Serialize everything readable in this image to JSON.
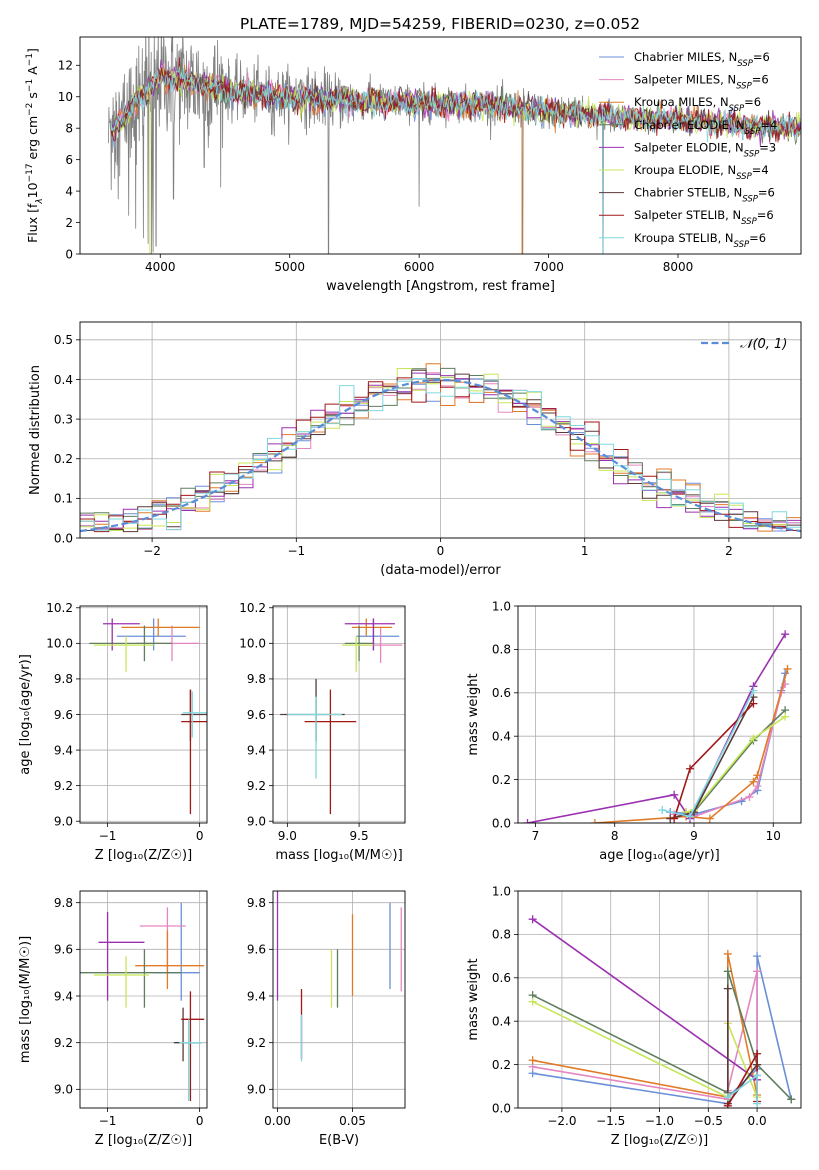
{
  "figure_title": "PLATE=1789, MJD=54259, FIBERID=0230, z=0.052",
  "series": [
    {
      "name": "Chabrier MILES",
      "sup": "SSP",
      "n": "6",
      "color": "#6a8fd8"
    },
    {
      "name": "Salpeter MILES",
      "sup": "SSP",
      "n": "6",
      "color": "#e586c0"
    },
    {
      "name": "Kroupa MILES",
      "sup": "SSP",
      "n": "6",
      "color": "#e07b28"
    },
    {
      "name": "Chabrier ELODIE",
      "sup": "SSP",
      "n": "4",
      "color": "#5f7d5f"
    },
    {
      "name": "Salpeter ELODIE",
      "sup": "SSP",
      "n": "3",
      "color": "#9b30b0"
    },
    {
      "name": "Kroupa ELODIE",
      "sup": "SSP",
      "n": "4",
      "color": "#c8e65a"
    },
    {
      "name": "Chabrier STELIB",
      "sup": "SSP",
      "n": "6",
      "color": "#5a3a3a"
    },
    {
      "name": "Salpeter STELIB",
      "sup": "SSP",
      "n": "6",
      "color": "#a01818"
    },
    {
      "name": "Kroupa STELIB",
      "sup": "SSP",
      "n": "6",
      "color": "#7fd8e0"
    }
  ],
  "chart_data": [
    {
      "id": "spectrum",
      "type": "line",
      "xlabel": "wavelength [Angstrom, rest frame]",
      "ylabel_parts": [
        "Flux [f",
        "λ",
        "10",
        "−17",
        " erg cm",
        "−2",
        " s",
        "−1",
        " A",
        "−1",
        "]"
      ],
      "xlim": [
        3380,
        8950
      ],
      "ylim": [
        0,
        13.8
      ],
      "xticks": [
        4000,
        5000,
        6000,
        7000,
        8000
      ],
      "yticks": [
        0,
        2,
        4,
        6,
        8,
        10,
        12
      ],
      "continuum_x": [
        3600,
        3700,
        3800,
        3900,
        4000,
        4200,
        4400,
        4600,
        5000,
        5500,
        6000,
        6500,
        7000,
        7400,
        7800,
        8200,
        8600,
        8950
      ],
      "continuum_y": [
        7.6,
        8.4,
        9.6,
        10.4,
        11.3,
        11.0,
        10.6,
        10.3,
        10.0,
        9.7,
        9.6,
        9.5,
        9.1,
        8.8,
        8.6,
        8.4,
        8.1,
        8.0
      ],
      "data_color": "#808080",
      "absorption_features": [
        [
          3933,
          0
        ],
        [
          3968,
          0.5
        ],
        [
          4102,
          3.5
        ],
        [
          4340,
          5.5
        ],
        [
          4861,
          7.6
        ],
        [
          5300,
          0
        ],
        [
          6000,
          3.0
        ],
        [
          6800,
          0
        ],
        [
          7420,
          0
        ]
      ]
    },
    {
      "id": "residuals",
      "type": "histogram",
      "xlabel": "(data-model)/error",
      "ylabel": "Normed distribution",
      "xlim": [
        -2.5,
        2.5
      ],
      "ylim": [
        0,
        0.545
      ],
      "xticks": [
        -2,
        -1,
        0,
        1,
        2
      ],
      "yticks": [
        0.0,
        0.1,
        0.2,
        0.3,
        0.4,
        0.5
      ],
      "bin_width": 0.1,
      "legend": "𝒩(0, 1)",
      "legend_color": "#5a8dd8"
    },
    {
      "id": "age_vs_Z",
      "type": "errorbar",
      "xlabel": "Z [log₁₀(Z/Z☉)]",
      "ylabel": "age  [log₁₀(age/yr)]",
      "xlim": [
        -1.3,
        0.08
      ],
      "ylim": [
        8.99,
        10.21
      ],
      "xticks": [
        -1,
        0
      ],
      "yticks": [
        9.0,
        9.2,
        9.4,
        9.6,
        9.8,
        10.0,
        10.2
      ],
      "points": [
        {
          "x": -0.5,
          "y": 10.04,
          "xerr": [
            0.4,
            0.35
          ],
          "yerr": [
            0.08,
            0.1
          ],
          "c": 0
        },
        {
          "x": -0.3,
          "y": 10.0,
          "xerr": [
            0.4,
            0.3
          ],
          "yerr": [
            0.1,
            0.1
          ],
          "c": 1
        },
        {
          "x": -0.45,
          "y": 10.09,
          "xerr": [
            0.4,
            0.45
          ],
          "yerr": [
            0.05,
            0.05
          ],
          "c": 2
        },
        {
          "x": -0.6,
          "y": 10.0,
          "xerr": [
            0.6,
            0.3
          ],
          "yerr": [
            0.1,
            0.1
          ],
          "c": 3
        },
        {
          "x": -0.95,
          "y": 10.11,
          "xerr": [
            0.1,
            0.3
          ],
          "yerr": [
            0.15,
            0.03
          ],
          "c": 4
        },
        {
          "x": -0.8,
          "y": 9.99,
          "xerr": [
            0.35,
            0.3
          ],
          "yerr": [
            0.15,
            0.05
          ],
          "c": 5
        },
        {
          "x": -0.1,
          "y": 9.6,
          "xerr": [
            0.1,
            0.2
          ],
          "yerr": [
            0.15,
            0.14
          ],
          "c": 6
        },
        {
          "x": -0.1,
          "y": 9.56,
          "xerr": [
            0.1,
            0.2
          ],
          "yerr": [
            0.52,
            0.18
          ],
          "c": 7
        },
        {
          "x": -0.08,
          "y": 9.61,
          "xerr": [
            0.1,
            0.2
          ],
          "yerr": [
            0.14,
            0.12
          ],
          "c": 8
        }
      ]
    },
    {
      "id": "age_vs_mass",
      "type": "errorbar",
      "xlabel": "mass [log₁₀(M/M☉)]",
      "ylabel": "",
      "xlim": [
        8.9,
        9.82
      ],
      "ylim": [
        8.99,
        10.21
      ],
      "xticks": [
        9.0,
        9.5
      ],
      "yticks": [
        9.0,
        9.2,
        9.4,
        9.6,
        9.8,
        10.0,
        10.2
      ],
      "points": [
        {
          "x": 9.6,
          "y": 10.04,
          "xerr": [
            0.12,
            0.18
          ],
          "yerr": [
            0.08,
            0.1
          ],
          "c": 0
        },
        {
          "x": 9.65,
          "y": 9.99,
          "xerr": [
            0.15,
            0.15
          ],
          "yerr": [
            0.1,
            0.1
          ],
          "c": 1
        },
        {
          "x": 9.55,
          "y": 10.09,
          "xerr": [
            0.1,
            0.18
          ],
          "yerr": [
            0.05,
            0.05
          ],
          "c": 2
        },
        {
          "x": 9.5,
          "y": 10.0,
          "xerr": [
            0.1,
            0.1
          ],
          "yerr": [
            0.1,
            0.1
          ],
          "c": 3
        },
        {
          "x": 9.6,
          "y": 10.11,
          "xerr": [
            0.2,
            0.15
          ],
          "yerr": [
            0.15,
            0.03
          ],
          "c": 4
        },
        {
          "x": 9.48,
          "y": 9.99,
          "xerr": [
            0.1,
            0.12
          ],
          "yerr": [
            0.15,
            0.05
          ],
          "c": 5
        },
        {
          "x": 9.2,
          "y": 9.6,
          "xerr": [
            0.25,
            0.2
          ],
          "yerr": [
            0.15,
            0.2
          ],
          "c": 6
        },
        {
          "x": 9.3,
          "y": 9.56,
          "xerr": [
            0.18,
            0.18
          ],
          "yerr": [
            0.52,
            0.18
          ],
          "c": 7
        },
        {
          "x": 9.2,
          "y": 9.6,
          "xerr": [
            0.2,
            0.18
          ],
          "yerr": [
            0.36,
            0.1
          ],
          "c": 8
        }
      ]
    },
    {
      "id": "weight_vs_age",
      "type": "line",
      "xlabel": "age  [log₁₀(age/yr)]",
      "ylabel": "mass weight",
      "xlim": [
        6.78,
        10.35
      ],
      "ylim": [
        0,
        1.0
      ],
      "xticks": [
        7,
        8,
        9,
        10
      ],
      "yticks": [
        0.0,
        0.2,
        0.4,
        0.6,
        0.8,
        1.0
      ],
      "lines": [
        {
          "c": 0,
          "x": [
            8.7,
            9.0,
            9.6,
            9.8,
            10.1,
            10.15
          ],
          "y": [
            0.05,
            0.04,
            0.1,
            0.15,
            0.61,
            0.69
          ]
        },
        {
          "c": 1,
          "x": [
            8.75,
            9.0,
            9.7,
            9.8,
            10.1,
            10.15
          ],
          "y": [
            0.04,
            0.03,
            0.12,
            0.17,
            0.6,
            0.64
          ]
        },
        {
          "c": 2,
          "x": [
            7.75,
            8.9,
            9.2,
            9.75,
            9.8,
            10.18
          ],
          "y": [
            0.0,
            0.03,
            0.02,
            0.19,
            0.22,
            0.71
          ]
        },
        {
          "c": 3,
          "x": [
            8.9,
            9.0,
            9.75,
            10.15
          ],
          "y": [
            0.05,
            0.05,
            0.38,
            0.52
          ]
        },
        {
          "c": 4,
          "x": [
            6.9,
            8.75,
            8.95,
            9.75,
            10.15
          ],
          "y": [
            0.0,
            0.13,
            0.02,
            0.63,
            0.87
          ]
        },
        {
          "c": 5,
          "x": [
            8.9,
            9.0,
            9.75,
            10.15
          ],
          "y": [
            0.05,
            0.06,
            0.39,
            0.49
          ]
        },
        {
          "c": 6,
          "x": [
            8.7,
            9.0,
            9.75
          ],
          "y": [
            0.02,
            0.05,
            0.58
          ]
        },
        {
          "c": 7,
          "x": [
            8.75,
            8.95,
            9.75
          ],
          "y": [
            0.02,
            0.25,
            0.55
          ]
        },
        {
          "c": 8,
          "x": [
            8.6,
            8.95,
            9.75
          ],
          "y": [
            0.06,
            0.03,
            0.61
          ]
        }
      ]
    },
    {
      "id": "mass_vs_Z",
      "type": "errorbar",
      "xlabel": "Z [log₁₀(Z/Z☉)]",
      "ylabel": "mass [log₁₀(M/M☉)]",
      "xlim": [
        -1.3,
        0.08
      ],
      "ylim": [
        8.92,
        9.85
      ],
      "xticks": [
        -1,
        0
      ],
      "yticks": [
        9.0,
        9.2,
        9.4,
        9.6,
        9.8
      ],
      "points": [
        {
          "x": -0.2,
          "y": 9.5,
          "xerr": [
            0.3,
            0.2
          ],
          "yerr": [
            0.12,
            0.3
          ],
          "c": 0
        },
        {
          "x": -0.35,
          "y": 9.7,
          "xerr": [
            0.3,
            0.2
          ],
          "yerr": [
            0.2,
            0.08
          ],
          "c": 1
        },
        {
          "x": -0.35,
          "y": 9.53,
          "xerr": [
            0.35,
            0.4
          ],
          "yerr": [
            0.1,
            0.15
          ],
          "c": 2
        },
        {
          "x": -0.6,
          "y": 9.5,
          "xerr": [
            0.7,
            0.4
          ],
          "yerr": [
            0.15,
            0.1
          ],
          "c": 3
        },
        {
          "x": -1.0,
          "y": 9.63,
          "xerr": [
            0.1,
            0.4
          ],
          "yerr": [
            0.25,
            0.13
          ],
          "c": 4
        },
        {
          "x": -0.8,
          "y": 9.49,
          "xerr": [
            0.35,
            0.25
          ],
          "yerr": [
            0.14,
            0.08
          ],
          "c": 5
        },
        {
          "x": -0.18,
          "y": 9.2,
          "xerr": [
            0.1,
            0.2
          ],
          "yerr": [
            0.08,
            0.15
          ],
          "c": 6
        },
        {
          "x": -0.1,
          "y": 9.3,
          "xerr": [
            0.1,
            0.15
          ],
          "yerr": [
            0.35,
            0.12
          ],
          "c": 7
        },
        {
          "x": -0.12,
          "y": 9.2,
          "xerr": [
            0.1,
            0.15
          ],
          "yerr": [
            0.25,
            0.1
          ],
          "c": 8
        }
      ]
    },
    {
      "id": "mass_vs_ebv",
      "type": "errorbar",
      "xlabel": "E(B-V)",
      "ylabel": "",
      "xlim": [
        -0.003,
        0.085
      ],
      "ylim": [
        8.92,
        9.85
      ],
      "xticks": [
        0.0,
        0.05
      ],
      "yticks": [
        9.0,
        9.2,
        9.4,
        9.6,
        9.8
      ],
      "points": [
        {
          "x": 0.075,
          "y": 9.6,
          "xerr": [
            0,
            0
          ],
          "yerr": [
            0.17,
            0.2
          ],
          "c": 0
        },
        {
          "x": 0.0825,
          "y": 9.6,
          "xerr": [
            0,
            0
          ],
          "yerr": [
            0.18,
            0.18
          ],
          "c": 1
        },
        {
          "x": 0.05,
          "y": 9.57,
          "xerr": [
            0,
            0
          ],
          "yerr": [
            0.17,
            0.18
          ],
          "c": 2
        },
        {
          "x": 0.04,
          "y": 9.47,
          "xerr": [
            0,
            0
          ],
          "yerr": [
            0.12,
            0.13
          ],
          "c": 3
        },
        {
          "x": 0.0,
          "y": 9.62,
          "xerr": [
            0,
            0
          ],
          "yerr": [
            0.24,
            0.24
          ],
          "c": 4
        },
        {
          "x": 0.036,
          "y": 9.47,
          "xerr": [
            0,
            0
          ],
          "yerr": [
            0.12,
            0.13
          ],
          "c": 5
        },
        {
          "x": 0.016,
          "y": 9.28,
          "xerr": [
            0,
            0
          ],
          "yerr": [
            0.15,
            0.15
          ],
          "c": 7
        },
        {
          "x": 0.016,
          "y": 9.22,
          "xerr": [
            0,
            0
          ],
          "yerr": [
            0.1,
            0.1
          ],
          "c": 8
        }
      ]
    },
    {
      "id": "weight_vs_Z",
      "type": "line",
      "xlabel": "Z [log₁₀(Z/Z☉)]",
      "ylabel": "mass weight",
      "xlim": [
        -2.45,
        0.45
      ],
      "ylim": [
        0,
        1.0
      ],
      "xticks": [
        -2.0,
        -1.5,
        -1.0,
        -0.5,
        0.0
      ],
      "yticks": [
        0.0,
        0.2,
        0.4,
        0.6,
        0.8,
        1.0
      ],
      "lines": [
        {
          "c": 0,
          "x": [
            -2.3,
            -0.3,
            -0.3,
            0.0,
            0.0,
            0.35
          ],
          "y": [
            0.16,
            0.02,
            0.05,
            0.18,
            0.7,
            0.04
          ]
        },
        {
          "c": 1,
          "x": [
            -2.3,
            -0.3,
            -0.3,
            0.0,
            0.0
          ],
          "y": [
            0.19,
            0.04,
            0.08,
            0.63,
            0.15
          ]
        },
        {
          "c": 2,
          "x": [
            -2.3,
            -0.3,
            -0.3,
            0.0
          ],
          "y": [
            0.22,
            0.05,
            0.71,
            0.06
          ]
        },
        {
          "c": 3,
          "x": [
            -2.3,
            -0.3,
            -0.3,
            0.0,
            0.35
          ],
          "y": [
            0.52,
            0.07,
            0.63,
            0.2,
            0.04
          ]
        },
        {
          "c": 4,
          "x": [
            -2.3,
            0.0
          ],
          "y": [
            0.87,
            0.13
          ]
        },
        {
          "c": 5,
          "x": [
            -2.3,
            -0.3,
            -0.3,
            0.0
          ],
          "y": [
            0.49,
            0.05,
            0.39,
            0.05
          ]
        },
        {
          "c": 6,
          "x": [
            -0.3,
            -0.3,
            0.0
          ],
          "y": [
            0.55,
            0.02,
            0.2
          ]
        },
        {
          "c": 7,
          "x": [
            -0.3,
            0.0,
            0.0
          ],
          "y": [
            0.01,
            0.25,
            0.03
          ]
        },
        {
          "c": 8,
          "x": [
            -0.3,
            0.0,
            0.0
          ],
          "y": [
            0.05,
            0.15,
            0.02
          ]
        }
      ]
    }
  ]
}
